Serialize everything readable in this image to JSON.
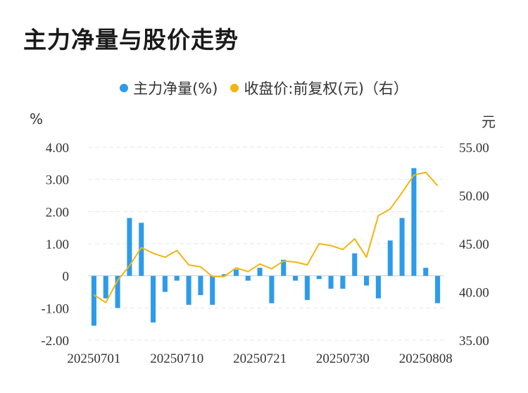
{
  "title": "主力净量与股价走势",
  "legend": {
    "net": "主力净量(%)",
    "price": "收盘价:前复权(元)（右）"
  },
  "units": {
    "left": "%",
    "right": "元"
  },
  "colors": {
    "bar": "#2E9BEA",
    "line": "#F2B50F",
    "grid": "#E6E6E6",
    "axis": "#CCCCCC"
  },
  "chart_data": {
    "type": "bar+line",
    "x_tick_labels": [
      "20250701",
      "20250710",
      "20250721",
      "20250730",
      "20250808"
    ],
    "x_tick_indices": [
      0,
      7,
      14,
      21,
      28
    ],
    "series": [
      {
        "name": "主力净量(%)",
        "type": "bar",
        "axis": "left",
        "values": [
          -1.55,
          -0.7,
          -1.0,
          1.8,
          1.65,
          -1.45,
          -0.5,
          -0.15,
          -0.9,
          -0.6,
          -0.9,
          0.05,
          0.2,
          -0.15,
          0.25,
          -0.85,
          0.5,
          -0.15,
          -0.75,
          -0.1,
          -0.4,
          -0.4,
          0.7,
          -0.3,
          -0.7,
          1.1,
          1.8,
          3.35,
          0.25,
          -0.85
        ]
      },
      {
        "name": "收盘价:前复权(元)（右）",
        "type": "line",
        "axis": "right",
        "values": [
          39.7,
          38.9,
          41.2,
          42.7,
          44.6,
          44.0,
          43.6,
          44.3,
          42.8,
          42.6,
          41.6,
          41.6,
          42.5,
          42.1,
          42.9,
          42.4,
          43.2,
          43.1,
          42.8,
          45.0,
          44.8,
          44.4,
          45.5,
          43.6,
          47.9,
          48.6,
          50.3,
          52.1,
          52.4,
          51.0
        ]
      }
    ],
    "y_left": {
      "ticks": [
        "4.00",
        "3.00",
        "2.00",
        "1.00",
        "0",
        "-1.00",
        "-2.00"
      ],
      "min": -2,
      "max": 4
    },
    "y_right": {
      "ticks": [
        "55.00",
        "50.00",
        "45.00",
        "40.00",
        "35.00"
      ],
      "min": 35,
      "max": 55
    },
    "grid": true,
    "legend_position": "top-center"
  }
}
